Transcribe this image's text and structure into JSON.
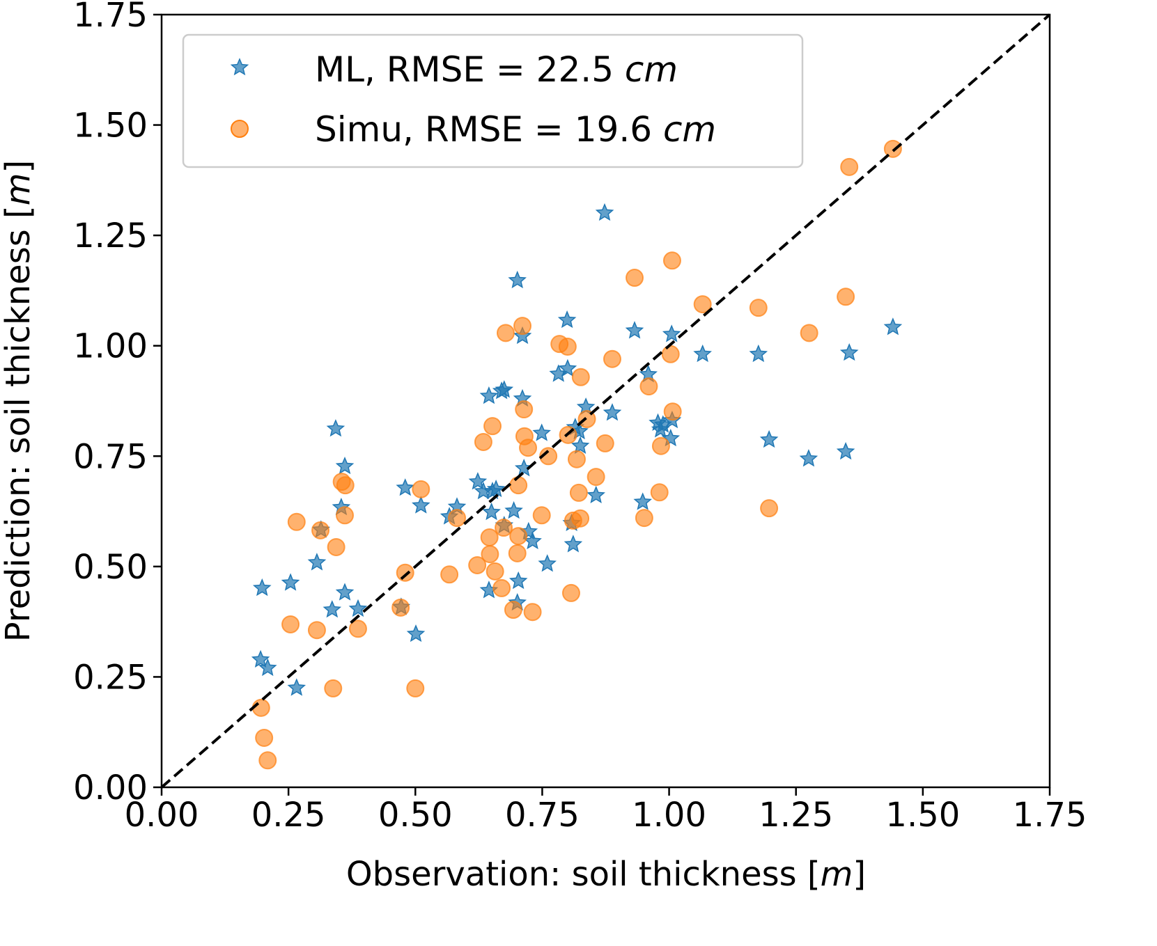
{
  "chart_data": {
    "type": "scatter",
    "xlabel": "Observation: soil thickness [",
    "xlabel_unit": "m",
    "xlabel_end": "]",
    "ylabel": "Prediction: soil thickness [",
    "ylabel_unit": "m",
    "ylabel_end": "]",
    "xlim": [
      0,
      1.75
    ],
    "ylim": [
      0,
      1.75
    ],
    "xticks": [
      "0.00",
      "0.25",
      "0.50",
      "0.75",
      "1.00",
      "1.25",
      "1.50",
      "1.75"
    ],
    "yticks": [
      "0.00",
      "0.25",
      "0.50",
      "0.75",
      "1.00",
      "1.25",
      "1.50",
      "1.75"
    ],
    "grid": false,
    "legend_placement": "top-left",
    "reference_line": {
      "type": "dashed",
      "from": [
        0,
        0
      ],
      "to": [
        1.75,
        1.75
      ],
      "color": "#000000"
    },
    "series": [
      {
        "name": "ML, RMSE = 22.5 ",
        "name_unit": "cm",
        "marker": "star",
        "color": "#1f77b4",
        "points": [
          [
            0.198,
            0.451
          ],
          [
            0.195,
            0.289
          ],
          [
            0.209,
            0.27
          ],
          [
            0.266,
            0.225
          ],
          [
            0.254,
            0.463
          ],
          [
            0.306,
            0.509
          ],
          [
            0.343,
            0.812
          ],
          [
            0.361,
            0.727
          ],
          [
            0.354,
            0.634
          ],
          [
            0.361,
            0.441
          ],
          [
            0.336,
            0.402
          ],
          [
            0.387,
            0.404
          ],
          [
            0.314,
            0.583
          ],
          [
            0.48,
            0.678
          ],
          [
            0.511,
            0.638
          ],
          [
            0.501,
            0.347
          ],
          [
            0.472,
            0.408
          ],
          [
            0.567,
            0.613
          ],
          [
            0.582,
            0.635
          ],
          [
            0.623,
            0.692
          ],
          [
            0.634,
            0.67
          ],
          [
            0.652,
            0.67
          ],
          [
            0.659,
            0.675
          ],
          [
            0.65,
            0.623
          ],
          [
            0.645,
            0.446
          ],
          [
            0.645,
            0.886
          ],
          [
            0.67,
            0.897
          ],
          [
            0.675,
            0.9
          ],
          [
            0.701,
            1.148
          ],
          [
            0.711,
            1.022
          ],
          [
            0.711,
            0.88
          ],
          [
            0.714,
            0.722
          ],
          [
            0.694,
            0.626
          ],
          [
            0.675,
            0.593
          ],
          [
            0.703,
            0.467
          ],
          [
            0.701,
            0.418
          ],
          [
            0.723,
            0.579
          ],
          [
            0.731,
            0.557
          ],
          [
            0.749,
            0.802
          ],
          [
            0.76,
            0.506
          ],
          [
            0.799,
            1.058
          ],
          [
            0.8,
            0.948
          ],
          [
            0.782,
            0.936
          ],
          [
            0.808,
            0.598
          ],
          [
            0.811,
            0.55
          ],
          [
            0.815,
            0.815
          ],
          [
            0.823,
            0.806
          ],
          [
            0.825,
            0.773
          ],
          [
            0.836,
            0.861
          ],
          [
            0.856,
            0.661
          ],
          [
            0.888,
            0.848
          ],
          [
            0.873,
            1.301
          ],
          [
            0.932,
            1.034
          ],
          [
            0.959,
            0.935
          ],
          [
            0.948,
            0.646
          ],
          [
            0.978,
            0.825
          ],
          [
            0.983,
            0.81
          ],
          [
            0.988,
            0.821
          ],
          [
            1.006,
            0.831
          ],
          [
            1.003,
            0.79
          ],
          [
            1.005,
            1.026
          ],
          [
            1.066,
            0.981
          ],
          [
            1.176,
            0.981
          ],
          [
            1.197,
            0.787
          ],
          [
            1.275,
            0.744
          ],
          [
            1.348,
            0.76
          ],
          [
            1.355,
            0.984
          ],
          [
            1.441,
            1.042
          ]
        ]
      },
      {
        "name": "Simu, RMSE = 19.6 ",
        "name_unit": "cm",
        "marker": "circle",
        "color": "#ff7f0e",
        "points": [
          [
            0.196,
            0.18
          ],
          [
            0.202,
            0.112
          ],
          [
            0.209,
            0.061
          ],
          [
            0.254,
            0.369
          ],
          [
            0.266,
            0.601
          ],
          [
            0.306,
            0.356
          ],
          [
            0.313,
            0.582
          ],
          [
            0.338,
            0.224
          ],
          [
            0.344,
            0.544
          ],
          [
            0.355,
            0.692
          ],
          [
            0.362,
            0.684
          ],
          [
            0.361,
            0.616
          ],
          [
            0.387,
            0.359
          ],
          [
            0.471,
            0.407
          ],
          [
            0.48,
            0.486
          ],
          [
            0.511,
            0.675
          ],
          [
            0.5,
            0.224
          ],
          [
            0.567,
            0.482
          ],
          [
            0.582,
            0.61
          ],
          [
            0.622,
            0.503
          ],
          [
            0.634,
            0.782
          ],
          [
            0.652,
            0.818
          ],
          [
            0.646,
            0.566
          ],
          [
            0.647,
            0.528
          ],
          [
            0.657,
            0.489
          ],
          [
            0.67,
            0.451
          ],
          [
            0.674,
            0.588
          ],
          [
            0.678,
            1.029
          ],
          [
            0.711,
            1.045
          ],
          [
            0.714,
            0.856
          ],
          [
            0.715,
            0.795
          ],
          [
            0.722,
            0.769
          ],
          [
            0.703,
            0.684
          ],
          [
            0.703,
            0.569
          ],
          [
            0.701,
            0.53
          ],
          [
            0.693,
            0.402
          ],
          [
            0.731,
            0.397
          ],
          [
            0.749,
            0.616
          ],
          [
            0.762,
            0.75
          ],
          [
            0.784,
            1.004
          ],
          [
            0.8,
            0.998
          ],
          [
            0.801,
            0.798
          ],
          [
            0.807,
            0.44
          ],
          [
            0.811,
            0.604
          ],
          [
            0.825,
            0.609
          ],
          [
            0.818,
            0.743
          ],
          [
            0.822,
            0.667
          ],
          [
            0.826,
            0.929
          ],
          [
            0.838,
            0.834
          ],
          [
            0.856,
            0.703
          ],
          [
            0.874,
            0.779
          ],
          [
            0.888,
            0.97
          ],
          [
            0.932,
            1.154
          ],
          [
            0.951,
            0.61
          ],
          [
            0.96,
            0.908
          ],
          [
            0.981,
            0.668
          ],
          [
            0.984,
            0.773
          ],
          [
            1.003,
            0.981
          ],
          [
            1.006,
            1.193
          ],
          [
            1.007,
            0.851
          ],
          [
            1.066,
            1.094
          ],
          [
            1.176,
            1.086
          ],
          [
            1.197,
            0.632
          ],
          [
            1.276,
            1.029
          ],
          [
            1.348,
            1.111
          ],
          [
            1.355,
            1.405
          ],
          [
            1.441,
            1.446
          ]
        ]
      }
    ]
  }
}
